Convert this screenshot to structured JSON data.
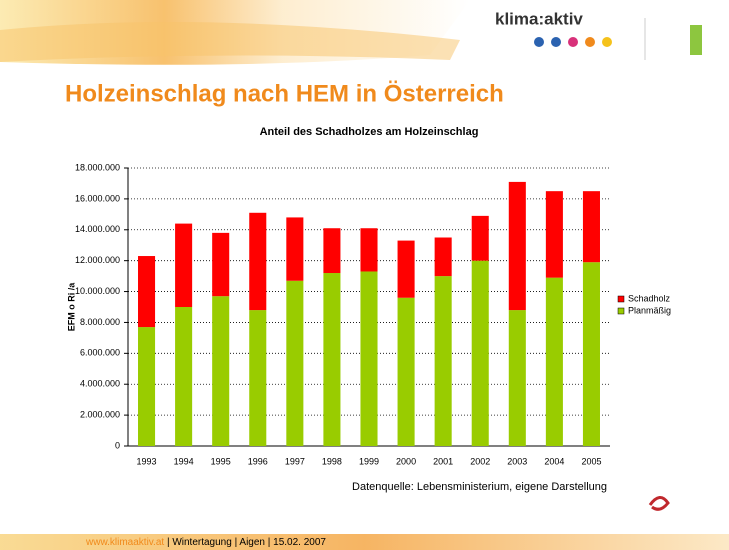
{
  "slide": {
    "title": "Holzeinschlag nach HEM in Österreich",
    "logo": "klima:aktiv",
    "source": "Datenquelle: Lebensministerium, eigene Darstellung",
    "footer_link": "www.klimaaktiv.at",
    "footer_text": " | Wintertagung | Aigen | 15.02. 2007"
  },
  "chart_data": {
    "type": "stacked_bar",
    "title": "Anteil des Schadholzes am Holzeinschlag",
    "y_label": "EFM o Ri /a",
    "categories": [
      "1993",
      "1994",
      "1995",
      "1996",
      "1997",
      "1998",
      "1999",
      "2000",
      "2001",
      "2002",
      "2003",
      "2004",
      "2005"
    ],
    "series": [
      {
        "name": "Planmäßig",
        "color": "#99cc00",
        "values": [
          7700000,
          9000000,
          9700000,
          8800000,
          10700000,
          11200000,
          11300000,
          9600000,
          11000000,
          12000000,
          8800000,
          10900000,
          11900000
        ]
      },
      {
        "name": "Schadholz",
        "color": "#ff0000",
        "values": [
          4600000,
          5400000,
          4100000,
          6300000,
          4100000,
          2900000,
          2800000,
          3700000,
          2500000,
          2900000,
          8300000,
          5600000,
          4600000
        ]
      }
    ],
    "ylim": [
      0,
      18000000
    ],
    "yticks": [
      0,
      {
        "value": 2000000,
        "label": "2.000.000"
      },
      {
        "value": 4000000,
        "label": "4.000.000"
      },
      {
        "value": 6000000,
        "label": "6.000.000"
      },
      {
        "value": 8000000,
        "label": "8.000.000"
      },
      {
        "value": 10000000,
        "label": "10.000.000"
      },
      {
        "value": 12000000,
        "label": "12.000.000"
      },
      {
        "value": 14000000,
        "label": "14.000.000"
      },
      {
        "value": 16000000,
        "label": "16.000.000"
      },
      {
        "value": 18000000,
        "label": "18.000.000"
      }
    ],
    "grid": true,
    "legend": "right"
  }
}
